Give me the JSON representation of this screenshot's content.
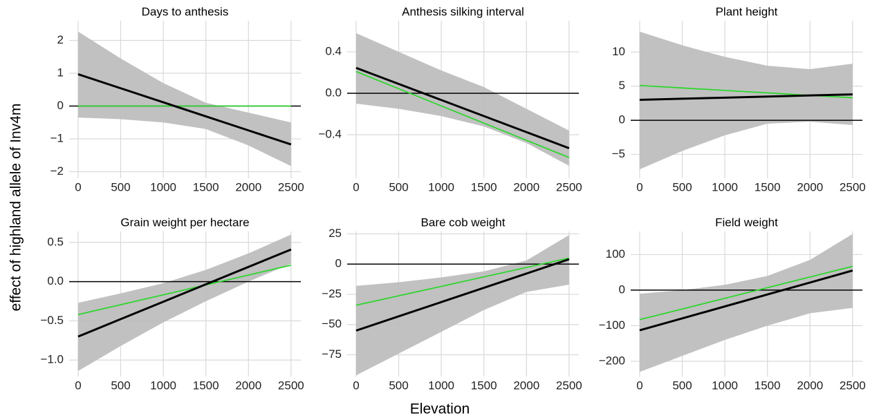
{
  "x_label": "Elevation",
  "y_label": "effect of highland allele of Inv4m",
  "chart_data": [
    {
      "type": "line",
      "title": "Days to anthesis",
      "x": [
        0,
        500,
        1000,
        1500,
        2000,
        2500
      ],
      "xlim": [
        -105,
        2615
      ],
      "xticks": [
        0,
        500,
        1000,
        1500,
        2000,
        2500
      ],
      "ylim": [
        -2.2,
        2.6
      ],
      "yticks": [
        {
          "value": -2,
          "label": "−2"
        },
        {
          "value": -1,
          "label": "−1"
        },
        0,
        1,
        2
      ],
      "grid": true,
      "hline": 0,
      "band": {
        "color": "#bebebe",
        "upper": [
          2.27,
          1.45,
          0.7,
          0.1,
          -0.2,
          -0.5
        ],
        "lower": [
          -0.35,
          -0.4,
          -0.5,
          -0.7,
          -1.2,
          -1.83
        ]
      },
      "series": [
        {
          "color": "#000000",
          "values": [
            0.97,
            0.542,
            0.114,
            -0.314,
            -0.742,
            -1.17
          ]
        },
        {
          "color": "#2ed62e",
          "values": [
            0,
            0,
            0,
            0,
            0,
            0
          ]
        }
      ]
    },
    {
      "type": "line",
      "title": "Anthesis silking interval",
      "x": [
        0,
        500,
        1000,
        1500,
        2000,
        2500
      ],
      "xlim": [
        -105,
        2615
      ],
      "xticks": [
        0,
        500,
        1000,
        1500,
        2000,
        2500
      ],
      "ylim": [
        -0.82,
        0.7
      ],
      "yticks": [
        {
          "value": -0.4,
          "label": "−0.4"
        },
        {
          "value": 0,
          "label": "0.0"
        },
        0.4
      ],
      "grid": true,
      "hline": 0,
      "band": {
        "color": "#bebebe",
        "upper": [
          0.58,
          0.4,
          0.22,
          0.06,
          -0.15,
          -0.36
        ],
        "lower": [
          -0.1,
          -0.15,
          -0.22,
          -0.32,
          -0.48,
          -0.7
        ]
      },
      "series": [
        {
          "color": "#000000",
          "values": [
            0.245,
            0.09,
            -0.065,
            -0.22,
            -0.375,
            -0.53
          ]
        },
        {
          "color": "#2ed62e",
          "values": [
            0.21,
            0.044,
            -0.122,
            -0.288,
            -0.454,
            -0.62
          ]
        }
      ]
    },
    {
      "type": "line",
      "title": "Plant height",
      "x": [
        0,
        500,
        1000,
        1500,
        2000,
        2500
      ],
      "xlim": [
        -105,
        2615
      ],
      "xticks": [
        0,
        500,
        1000,
        1500,
        2000,
        2500
      ],
      "ylim": [
        -8.5,
        14.6
      ],
      "yticks": [
        {
          "value": -5,
          "label": "−5"
        },
        0,
        5,
        10
      ],
      "grid": true,
      "hline": 0,
      "band": {
        "color": "#bebebe",
        "upper": [
          13,
          11,
          9.3,
          8,
          7.5,
          8.3
        ],
        "lower": [
          -7.2,
          -4.5,
          -2.2,
          -0.5,
          -0.2,
          -0.7
        ]
      },
      "series": [
        {
          "color": "#000000",
          "values": [
            3.0,
            3.16,
            3.32,
            3.48,
            3.64,
            3.8
          ]
        },
        {
          "color": "#2ed62e",
          "values": [
            5.1,
            4.74,
            4.38,
            4.02,
            3.66,
            3.3
          ]
        }
      ]
    },
    {
      "type": "line",
      "title": "Grain weight per hectare",
      "x": [
        0,
        500,
        1000,
        1500,
        2000,
        2500
      ],
      "xlim": [
        -105,
        2615
      ],
      "xticks": [
        0,
        500,
        1000,
        1500,
        2000,
        2500
      ],
      "ylim": [
        -1.21,
        0.64
      ],
      "yticks": [
        {
          "value": -1,
          "label": "−1.0"
        },
        {
          "value": -0.5,
          "label": "−0.5"
        },
        {
          "value": 0,
          "label": "0.0"
        },
        0.5
      ],
      "grid": true,
      "hline": 0,
      "band": {
        "color": "#bebebe",
        "upper": [
          -0.27,
          -0.15,
          -0.02,
          0.15,
          0.36,
          0.6
        ],
        "lower": [
          -1.14,
          -0.82,
          -0.52,
          -0.25,
          0.0,
          0.23
        ]
      },
      "series": [
        {
          "color": "#000000",
          "values": [
            -0.7,
            -0.478,
            -0.256,
            -0.034,
            0.188,
            0.41
          ]
        },
        {
          "color": "#2ed62e",
          "values": [
            -0.42,
            -0.294,
            -0.168,
            -0.042,
            0.084,
            0.21
          ]
        }
      ]
    },
    {
      "type": "line",
      "title": "Bare cob weight",
      "x": [
        0,
        500,
        1000,
        1500,
        2000,
        2500
      ],
      "xlim": [
        -105,
        2615
      ],
      "xticks": [
        0,
        500,
        1000,
        1500,
        2000,
        2500
      ],
      "ylim": [
        -93,
        27
      ],
      "yticks": [
        {
          "value": -75,
          "label": "−75"
        },
        {
          "value": -50,
          "label": "−50"
        },
        {
          "value": -25,
          "label": "−25"
        },
        0,
        25
      ],
      "grid": true,
      "hline": 0,
      "band": {
        "color": "#bebebe",
        "upper": [
          -18,
          -15,
          -11,
          -6,
          3,
          24
        ],
        "lower": [
          -92,
          -74,
          -56,
          -38,
          -23,
          -17
        ]
      },
      "series": [
        {
          "color": "#000000",
          "values": [
            -55,
            -43.2,
            -31.4,
            -19.6,
            -7.8,
            4
          ]
        },
        {
          "color": "#2ed62e",
          "values": [
            -34,
            -26.2,
            -18.4,
            -10.6,
            -2.8,
            5
          ]
        }
      ]
    },
    {
      "type": "line",
      "title": "Field weight",
      "x": [
        0,
        500,
        1000,
        1500,
        2000,
        2500
      ],
      "xlim": [
        -105,
        2615
      ],
      "xticks": [
        0,
        500,
        1000,
        1500,
        2000,
        2500
      ],
      "ylim": [
        -243,
        165
      ],
      "yticks": [
        {
          "value": -200,
          "label": "−200"
        },
        {
          "value": -100,
          "label": "−100"
        },
        0,
        100
      ],
      "grid": true,
      "hline": 0,
      "band": {
        "color": "#bebebe",
        "upper": [
          -10,
          0,
          15,
          40,
          85,
          158
        ],
        "lower": [
          -230,
          -185,
          -140,
          -100,
          -65,
          -50
        ]
      },
      "series": [
        {
          "color": "#000000",
          "values": [
            -113,
            -79.4,
            -45.8,
            -12.2,
            21.4,
            55
          ]
        },
        {
          "color": "#2ed62e",
          "values": [
            -83,
            -53,
            -23,
            7,
            37,
            67
          ]
        }
      ]
    }
  ]
}
